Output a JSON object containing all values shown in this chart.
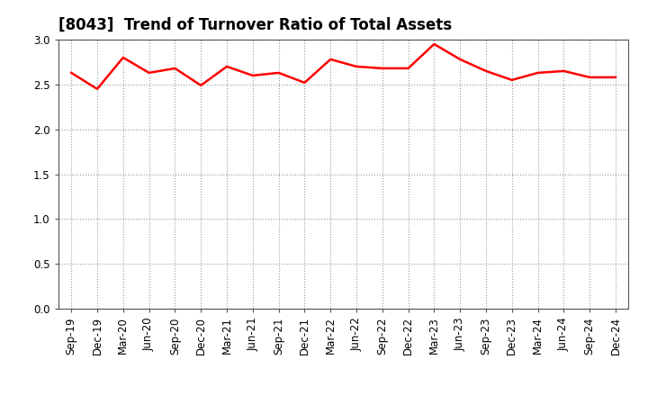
{
  "title": "[8043]  Trend of Turnover Ratio of Total Assets",
  "labels": [
    "Sep-19",
    "Dec-19",
    "Mar-20",
    "Jun-20",
    "Sep-20",
    "Dec-20",
    "Mar-21",
    "Jun-21",
    "Sep-21",
    "Dec-21",
    "Mar-22",
    "Jun-22",
    "Sep-22",
    "Dec-22",
    "Mar-23",
    "Jun-23",
    "Sep-23",
    "Dec-23",
    "Mar-24",
    "Jun-24",
    "Sep-24",
    "Dec-24"
  ],
  "values": [
    2.63,
    2.45,
    2.8,
    2.63,
    2.68,
    2.49,
    2.7,
    2.6,
    2.63,
    2.52,
    2.78,
    2.7,
    2.68,
    2.68,
    2.95,
    2.78,
    2.65,
    2.55,
    2.63,
    2.65,
    2.58,
    2.58
  ],
  "line_color": "#FF0000",
  "line_width": 1.8,
  "ylim": [
    0.0,
    3.0
  ],
  "yticks": [
    0.0,
    0.5,
    1.0,
    1.5,
    2.0,
    2.5,
    3.0
  ],
  "background_color": "#ffffff",
  "grid_color": "#999999",
  "title_fontsize": 12,
  "tick_fontsize": 8.5
}
